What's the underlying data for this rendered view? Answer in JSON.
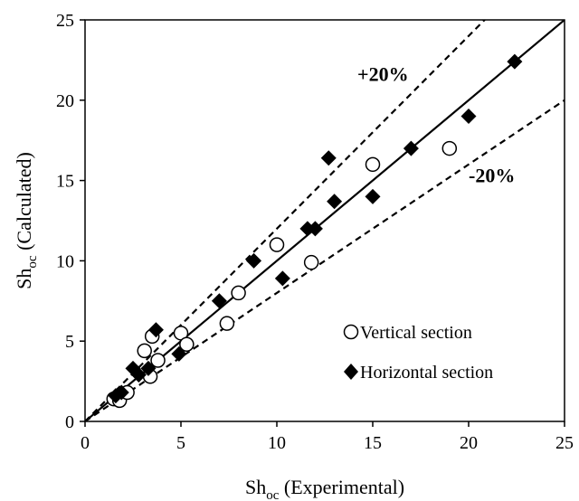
{
  "chart_data": {
    "type": "scatter",
    "xlabel": {
      "main": "Sh",
      "sub": "oc",
      "rest": " (Experimental)"
    },
    "ylabel": {
      "main": "Sh",
      "sub": "oc",
      "rest": " (Calculated)"
    },
    "xlim": [
      0,
      25
    ],
    "ylim": [
      0,
      25
    ],
    "xticks": [
      0,
      5,
      10,
      15,
      20,
      25
    ],
    "yticks": [
      0,
      5,
      10,
      15,
      20,
      25
    ],
    "grid": false,
    "legend_position": "bottom-right",
    "lines": [
      {
        "kind": "parity",
        "style": "solid",
        "slope": 1.0
      },
      {
        "kind": "upper-bound",
        "style": "dashed",
        "slope": 1.2
      },
      {
        "kind": "lower-bound",
        "style": "dashed",
        "slope": 0.8
      }
    ],
    "annotations": [
      {
        "text": "+20%",
        "x": 14.2,
        "y": 21.2
      },
      {
        "text": "-20%",
        "x": 20.0,
        "y": 14.9
      }
    ],
    "series": [
      {
        "name": "Vertical section",
        "marker": "open-circle",
        "color": "#000000",
        "x": [
          1.5,
          1.8,
          2.2,
          3.1,
          3.4,
          3.5,
          3.8,
          5.0,
          5.3,
          7.4,
          8.0,
          10.0,
          11.8,
          15.0,
          19.0
        ],
        "y": [
          1.4,
          1.3,
          1.8,
          4.4,
          2.8,
          5.3,
          3.8,
          5.5,
          4.8,
          6.1,
          8.0,
          11.0,
          9.9,
          16.0,
          17.0
        ]
      },
      {
        "name": "Horizontal section",
        "marker": "filled-diamond",
        "color": "#000000",
        "x": [
          1.6,
          1.9,
          2.5,
          2.8,
          3.3,
          3.7,
          4.9,
          7.0,
          8.8,
          10.3,
          11.6,
          12.0,
          12.7,
          13.0,
          15.0,
          17.0,
          20.0,
          22.4
        ],
        "y": [
          1.6,
          1.8,
          3.3,
          2.9,
          3.3,
          5.7,
          4.2,
          7.5,
          10.0,
          8.9,
          12.0,
          12.0,
          16.4,
          13.7,
          14.0,
          17.0,
          19.0,
          22.4
        ]
      }
    ]
  }
}
